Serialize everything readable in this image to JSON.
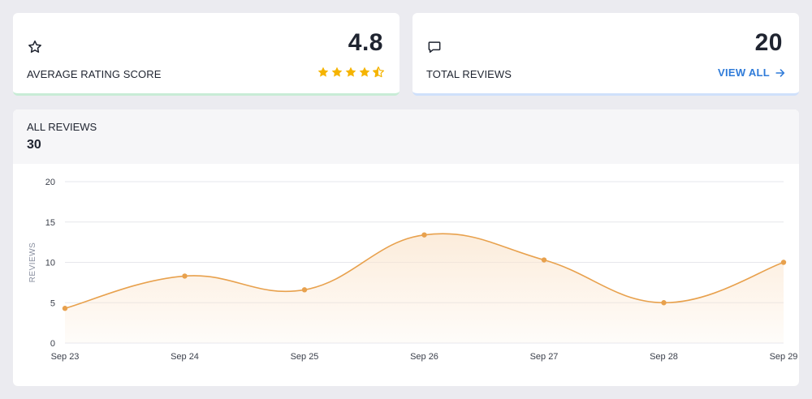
{
  "rating_card": {
    "value": "4.8",
    "label": "AVERAGE RATING SCORE",
    "stars": 4.5,
    "star_color": "#f5b400",
    "icon": "star-outline-icon",
    "accent_color": "#c8ecd6"
  },
  "reviews_card": {
    "value": "20",
    "label": "TOTAL REVIEWS",
    "link_label": "VIEW ALL",
    "link_color": "#2f7bd9",
    "icon": "chat-bubble-icon",
    "accent_color": "#cfe0fb"
  },
  "chart_card": {
    "title": "ALL REVIEWS",
    "total": "30"
  },
  "chart_data": {
    "type": "area",
    "x": [
      "Sep 23",
      "Sep 24",
      "Sep 25",
      "Sep 26",
      "Sep 27",
      "Sep 28",
      "Sep 29"
    ],
    "series": [
      {
        "values": [
          4.3,
          8.3,
          6.6,
          13.4,
          10.3,
          5.0,
          10.0
        ]
      }
    ],
    "ylabel": "REVIEWS",
    "xlabel": "",
    "ylim": [
      0,
      20
    ],
    "yticks": [
      0,
      5,
      10,
      15,
      20
    ],
    "grid": true,
    "line_color": "#e8a14d",
    "fill_color": "#fbe6cf"
  }
}
